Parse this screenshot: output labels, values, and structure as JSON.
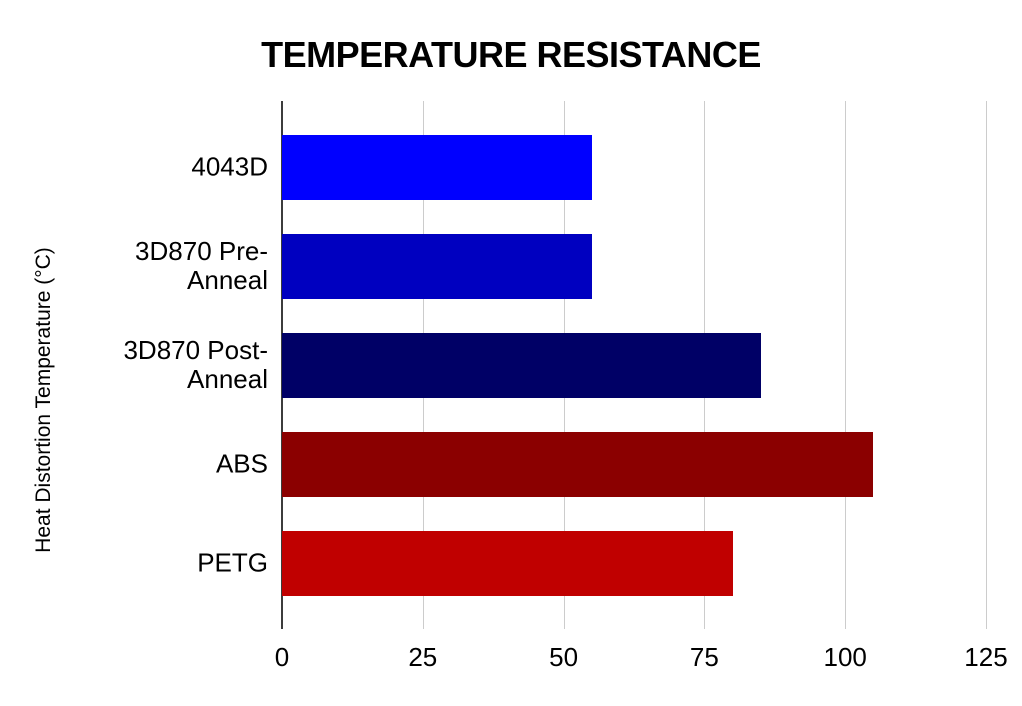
{
  "chart_data": {
    "type": "bar",
    "orientation": "horizontal",
    "title": "TEMPERATURE RESISTANCE",
    "ylabel": "Heat Distortion Temperature (°C)",
    "xlabel": "",
    "categories": [
      "4043D",
      "3D870 Pre-Anneal",
      "3D870 Post-Anneal",
      "ABS",
      "PETG"
    ],
    "values": [
      55,
      55,
      85,
      105,
      80
    ],
    "bar_colors": [
      "#0000ff",
      "#0000c0",
      "#000066",
      "#8b0000",
      "#c00000"
    ],
    "xlim": [
      0,
      125
    ],
    "x_ticks": [
      0,
      25,
      50,
      75,
      100,
      125
    ],
    "grid": true,
    "legend": false,
    "gridline_color": "#cccccc",
    "axis_line_color": "#3c3c3c",
    "text_color": "#000000",
    "background_color": "#ffffff"
  }
}
